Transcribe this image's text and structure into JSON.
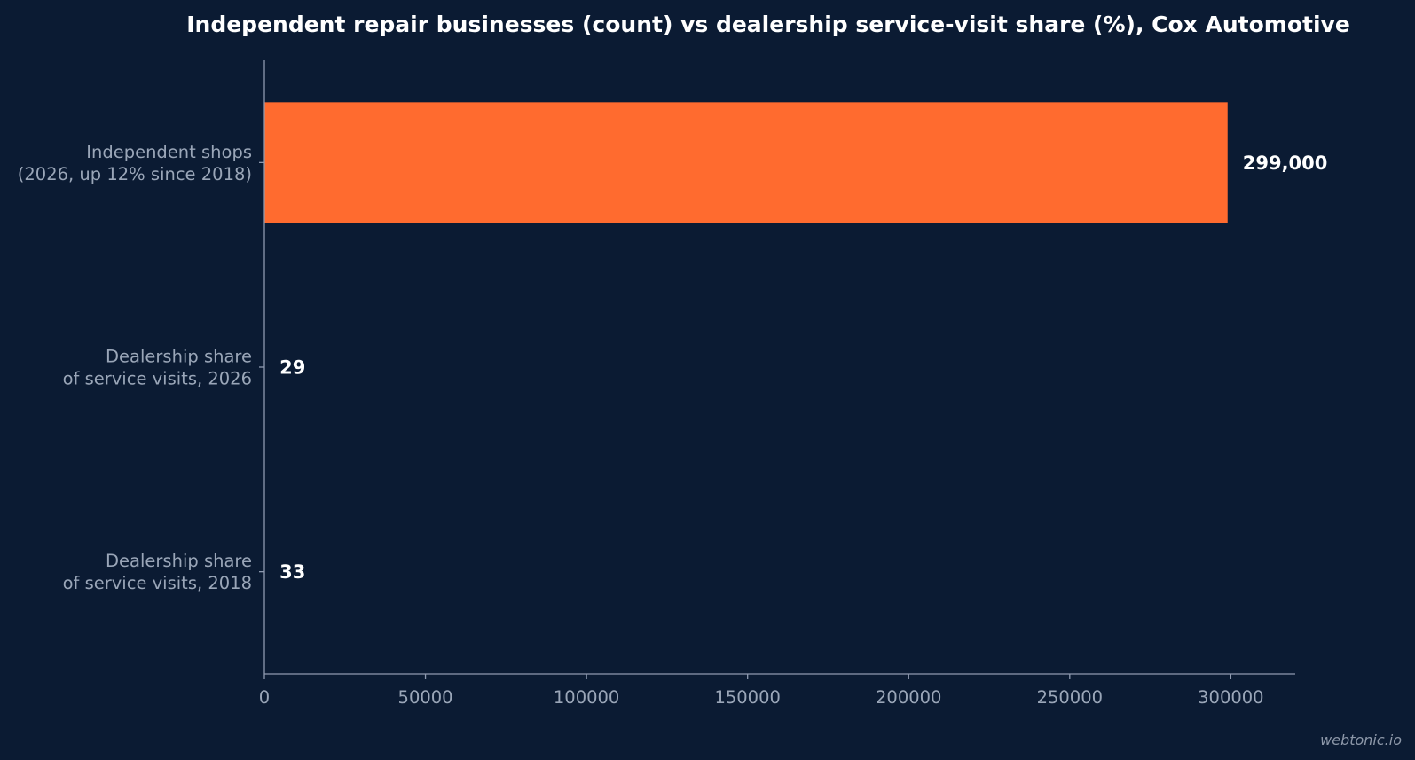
{
  "colors": {
    "background": "#0b1b33",
    "bar": "#ff6b2f",
    "axis": "#8f9ab0",
    "label": "#9aa6b8",
    "title": "#ffffff"
  },
  "watermark": "webtonic.io",
  "chart_data": {
    "type": "bar",
    "orientation": "horizontal",
    "title": "Independent repair businesses (count) vs dealership service-visit share (%), Cox Automotive",
    "xlabel": "",
    "ylabel": "",
    "categories": [
      [
        "Independent shops",
        "(2026, up 12% since 2018)"
      ],
      [
        "Dealership share",
        "of service visits, 2026"
      ],
      [
        "Dealership share",
        "of service visits, 2018"
      ]
    ],
    "values": [
      299000,
      29,
      33
    ],
    "value_labels": [
      "299,000",
      "29",
      "33"
    ],
    "xlim": [
      0,
      320000
    ],
    "xticks": [
      0,
      50000,
      100000,
      150000,
      200000,
      250000,
      300000
    ],
    "grid": false,
    "legend": "none"
  }
}
